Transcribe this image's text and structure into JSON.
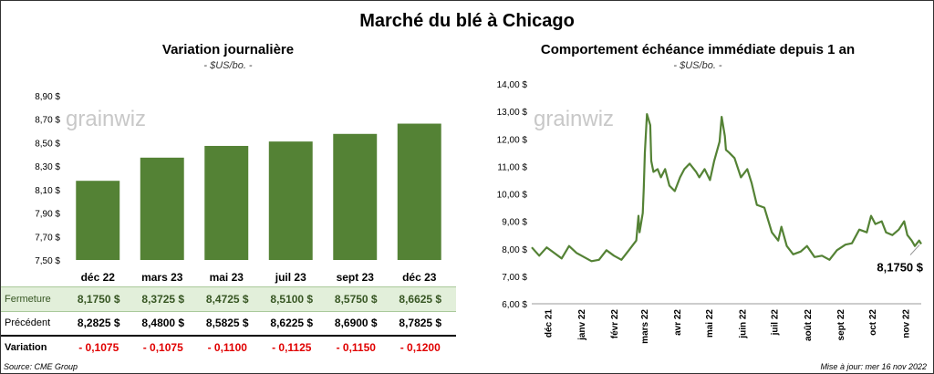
{
  "title": "Marché du blé à Chicago",
  "left": {
    "title": "Variation  journalière",
    "subtitle": "- $US/bo. -",
    "watermark": "grainwiz",
    "chart_data": {
      "type": "bar",
      "categories": [
        "déc 22",
        "mars 23",
        "mai 23",
        "juil 23",
        "sept 23",
        "déc 23"
      ],
      "values": [
        8.175,
        8.3725,
        8.4725,
        8.51,
        8.575,
        8.6625
      ],
      "ylim": [
        7.5,
        8.9
      ],
      "yticks": [
        "8,90 $",
        "8,70 $",
        "8,50 $",
        "8,30 $",
        "8,10 $",
        "7,90 $",
        "7,70 $",
        "7,50 $"
      ],
      "ytick_values": [
        8.9,
        8.7,
        8.5,
        8.3,
        8.1,
        7.9,
        7.7,
        7.5
      ],
      "color": "#548235"
    },
    "table": {
      "close_label": "Fermeture",
      "close": [
        "8,1750  $",
        "8,3725  $",
        "8,4725  $",
        "8,5100  $",
        "8,5750  $",
        "8,6625  $"
      ],
      "prev_label": "Précédent",
      "prev": [
        "8,2825  $",
        "8,4800  $",
        "8,5825  $",
        "8,6225  $",
        "8,6900  $",
        "8,7825  $"
      ],
      "var_label": "Variation",
      "var": [
        "- 0,1075",
        "- 0,1075",
        "- 0,1100",
        "- 0,1125",
        "- 0,1150",
        "- 0,1200"
      ],
      "neg_color": "#e00000"
    },
    "source": "Source: CME Group"
  },
  "right": {
    "title": "Comportement  échéance immédiate depuis 1 an",
    "subtitle": "- $US/bo. -",
    "watermark": "grainwiz",
    "last_value_label": "8,1750 $",
    "updated": "Mise à jour: mer 16 nov 2022",
    "chart_data": {
      "type": "line",
      "ylim": [
        6,
        14
      ],
      "yticks": [
        "14,00 $",
        "13,00 $",
        "12,00 $",
        "11,00 $",
        "10,00 $",
        "9,00 $",
        "8,00 $",
        "7,00 $",
        "6,00 $"
      ],
      "ytick_values": [
        14,
        13,
        12,
        11,
        10,
        9,
        8,
        7,
        6
      ],
      "xticks": [
        "déc 21",
        "janv 22",
        "févr 22",
        "mars 22",
        "avr 22",
        "mai 22",
        "juin 22",
        "juil 22",
        "août 22",
        "sept 22",
        "oct 22",
        "nov 22"
      ],
      "color": "#548235",
      "series": [
        {
          "x": [
            "2021-11-16",
            "2021-11-23",
            "2021-11-30",
            "2021-12-07",
            "2021-12-14",
            "2021-12-21",
            "2021-12-28",
            "2022-01-04",
            "2022-01-11",
            "2022-01-18",
            "2022-01-25",
            "2022-02-01",
            "2022-02-08",
            "2022-02-15",
            "2022-02-18",
            "2022-02-22",
            "2022-02-24",
            "2022-02-25",
            "2022-02-28",
            "2022-03-01",
            "2022-03-02",
            "2022-03-04",
            "2022-03-07",
            "2022-03-08",
            "2022-03-10",
            "2022-03-14",
            "2022-03-17",
            "2022-03-21",
            "2022-03-25",
            "2022-03-30",
            "2022-04-04",
            "2022-04-08",
            "2022-04-13",
            "2022-04-19",
            "2022-04-22",
            "2022-04-27",
            "2022-05-02",
            "2022-05-06",
            "2022-05-11",
            "2022-05-13",
            "2022-05-16",
            "2022-05-17",
            "2022-05-20",
            "2022-05-25",
            "2022-05-31",
            "2022-06-06",
            "2022-06-10",
            "2022-06-15",
            "2022-06-22",
            "2022-06-29",
            "2022-07-05",
            "2022-07-08",
            "2022-07-13",
            "2022-07-19",
            "2022-07-26",
            "2022-08-01",
            "2022-08-08",
            "2022-08-15",
            "2022-08-22",
            "2022-08-29",
            "2022-09-06",
            "2022-09-12",
            "2022-09-19",
            "2022-09-26",
            "2022-09-30",
            "2022-10-04",
            "2022-10-10",
            "2022-10-14",
            "2022-10-20",
            "2022-10-26",
            "2022-10-31",
            "2022-11-03",
            "2022-11-07",
            "2022-11-10",
            "2022-11-14",
            "2022-11-16"
          ],
          "values": [
            8.05,
            7.75,
            8.05,
            7.85,
            7.65,
            8.1,
            7.85,
            7.7,
            7.55,
            7.6,
            7.95,
            7.75,
            7.6,
            7.95,
            8.1,
            8.3,
            9.2,
            8.6,
            9.3,
            10.2,
            11.5,
            12.9,
            12.5,
            11.2,
            10.8,
            10.9,
            10.6,
            10.9,
            10.3,
            10.1,
            10.6,
            10.9,
            11.1,
            10.8,
            10.6,
            10.9,
            10.5,
            11.2,
            11.9,
            12.8,
            12.1,
            11.6,
            11.5,
            11.3,
            10.6,
            10.9,
            10.4,
            9.6,
            9.5,
            8.6,
            8.3,
            8.8,
            8.1,
            7.8,
            7.9,
            8.1,
            7.7,
            7.75,
            7.6,
            7.95,
            8.15,
            8.2,
            8.7,
            8.6,
            9.2,
            8.9,
            9.0,
            8.6,
            8.5,
            8.7,
            9.0,
            8.5,
            8.3,
            8.1,
            8.3,
            8.175
          ]
        }
      ]
    }
  }
}
